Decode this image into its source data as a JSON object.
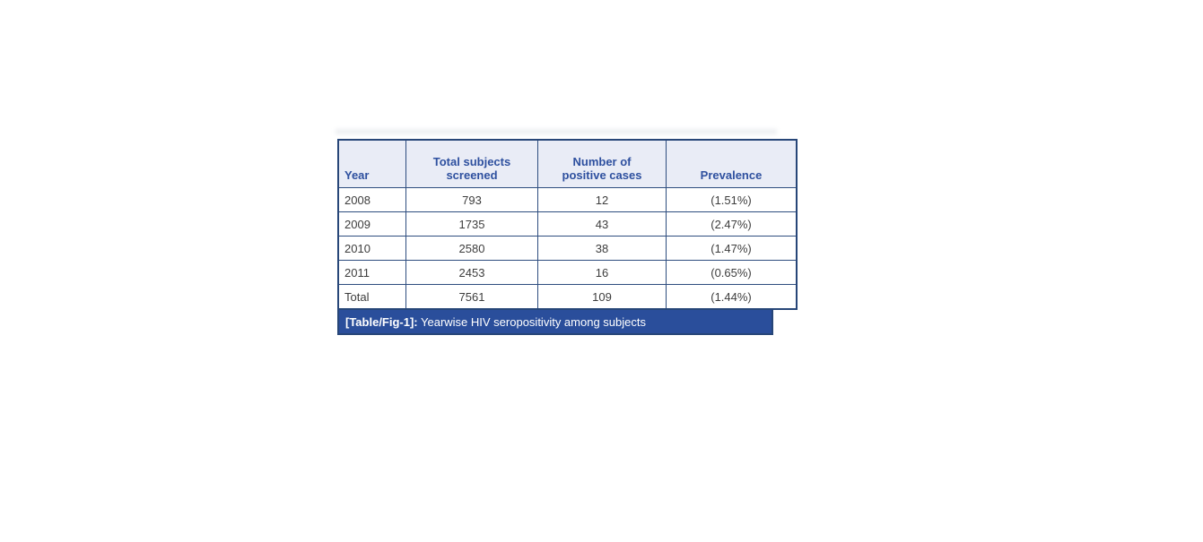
{
  "figure": {
    "table": {
      "columns": [
        {
          "id": "year",
          "lines": [
            "Year"
          ]
        },
        {
          "id": "screened",
          "lines": [
            "Total subjects",
            "screened"
          ]
        },
        {
          "id": "positive",
          "lines": [
            "Number of",
            "positive cases"
          ]
        },
        {
          "id": "prevalence",
          "lines": [
            "Prevalence"
          ]
        }
      ],
      "rows": [
        {
          "year": "2008",
          "screened": "793",
          "positive": "12",
          "prevalence": "(1.51%)"
        },
        {
          "year": "2009",
          "screened": "1735",
          "positive": "43",
          "prevalence": "(2.47%)"
        },
        {
          "year": "2010",
          "screened": "2580",
          "positive": "38",
          "prevalence": "(1.47%)"
        },
        {
          "year": "2011",
          "screened": "2453",
          "positive": "16",
          "prevalence": "(0.65%)"
        },
        {
          "year": "Total",
          "screened": "7561",
          "positive": "109",
          "prevalence": "(1.44%)"
        }
      ]
    },
    "caption": {
      "label": "[Table/Fig-1]:",
      "text": " Yearwise HIV seropositivity among subjects"
    },
    "colors": {
      "header_bg": "#e9ecf6",
      "header_text": "#2e509f",
      "border": "#2e4d7f",
      "outer_border": "#274678",
      "caption_bg": "#2a4e9b",
      "caption_text": "#ffffff",
      "body_text": "#3d3d3d",
      "page_bg": "#ffffff"
    }
  },
  "chart_data": {
    "type": "table",
    "title": "[Table/Fig-1]: Yearwise HIV seropositivity among subjects",
    "columns": [
      "Year",
      "Total subjects screened",
      "Number of positive cases",
      "Prevalence"
    ],
    "rows": [
      [
        "2008",
        793,
        12,
        "(1.51%)"
      ],
      [
        "2009",
        1735,
        43,
        "(2.47%)"
      ],
      [
        "2010",
        2580,
        38,
        "(1.47%)"
      ],
      [
        "2011",
        2453,
        16,
        "(0.65%)"
      ],
      [
        "Total",
        7561,
        109,
        "(1.44%)"
      ]
    ]
  }
}
